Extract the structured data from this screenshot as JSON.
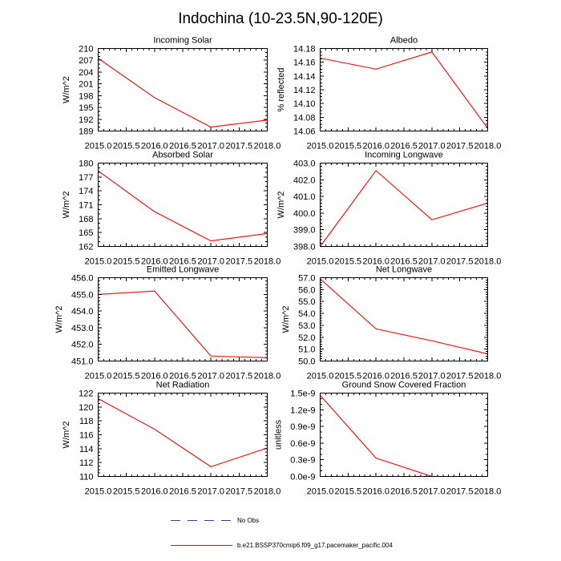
{
  "figure": {
    "title": "Indochina (10-23.5N,90-120E)"
  },
  "legend": {
    "items": [
      {
        "label": "No Obs",
        "color": "#3d3d9e",
        "dashed": true
      },
      {
        "label": "b.e21.BSSP370cmip6.f09_g17.pacemaker_pacific.004",
        "color": "#ff0000",
        "dashed": false
      }
    ]
  },
  "chart_data": [
    {
      "type": "line",
      "title": "Incoming Solar",
      "ylabel": "W/m^2",
      "x": [
        2015.0,
        2016.0,
        2017.0,
        2018.0
      ],
      "xlim": [
        2015.0,
        2018.0
      ],
      "xticks": [
        2015.0,
        2015.5,
        2016.0,
        2016.5,
        2017.0,
        2017.5,
        2018.0
      ],
      "xticklabels": [
        "2015.0",
        "2015.5",
        "2016.0",
        "2016.5",
        "2017.0",
        "2017.5",
        "2018.0"
      ],
      "ylim": [
        189,
        210
      ],
      "yticks": [
        189,
        192,
        195,
        198,
        201,
        204,
        207,
        210
      ],
      "yticklabels": [
        "189",
        "192",
        "195",
        "198",
        "201",
        "204",
        "207",
        "210"
      ],
      "series": [
        {
          "color": "#ff0000",
          "values": [
            207.5,
            197.5,
            190.0,
            191.8
          ]
        }
      ]
    },
    {
      "type": "line",
      "title": "Albedo",
      "ylabel": "% reflected",
      "x": [
        2015.0,
        2016.0,
        2017.0,
        2018.0
      ],
      "xlim": [
        2015.0,
        2018.0
      ],
      "xticks": [
        2015.0,
        2015.5,
        2016.0,
        2016.5,
        2017.0,
        2017.5,
        2018.0
      ],
      "xticklabels": [
        "2015.0",
        "2015.5",
        "2016.0",
        "2016.5",
        "2017.0",
        "2017.5",
        "2018.0"
      ],
      "ylim": [
        14.06,
        14.18
      ],
      "yticks": [
        14.06,
        14.08,
        14.1,
        14.12,
        14.14,
        14.16,
        14.18
      ],
      "yticklabels": [
        "14.06",
        "14.08",
        "14.10",
        "14.12",
        "14.14",
        "14.16",
        "14.18"
      ],
      "series": [
        {
          "color": "#ff0000",
          "values": [
            14.166,
            14.15,
            14.175,
            14.064
          ]
        }
      ]
    },
    {
      "type": "line",
      "title": "Absorbed Solar",
      "ylabel": "W/m^2",
      "x": [
        2015.0,
        2016.0,
        2017.0,
        2018.0
      ],
      "xlim": [
        2015.0,
        2018.0
      ],
      "xticks": [
        2015.0,
        2015.5,
        2016.0,
        2016.5,
        2017.0,
        2017.5,
        2018.0
      ],
      "xticklabels": [
        "2015.0",
        "2015.5",
        "2016.0",
        "2016.5",
        "2017.0",
        "2017.5",
        "2018.0"
      ],
      "ylim": [
        162,
        180
      ],
      "yticks": [
        162,
        165,
        168,
        171,
        174,
        177,
        180
      ],
      "yticklabels": [
        "162",
        "165",
        "168",
        "171",
        "174",
        "177",
        "180"
      ],
      "series": [
        {
          "color": "#ff0000",
          "values": [
            178.3,
            169.5,
            163.2,
            164.8
          ]
        }
      ]
    },
    {
      "type": "line",
      "title": "Incoming Longwave",
      "ylabel": "W/m^2",
      "x": [
        2015.0,
        2016.0,
        2017.0,
        2018.0
      ],
      "xlim": [
        2015.0,
        2018.0
      ],
      "xticks": [
        2015.0,
        2015.5,
        2016.0,
        2016.5,
        2017.0,
        2017.5,
        2018.0
      ],
      "xticklabels": [
        "2015.0",
        "2015.5",
        "2016.0",
        "2016.5",
        "2017.0",
        "2017.5",
        "2018.0"
      ],
      "ylim": [
        398.0,
        403.0
      ],
      "yticks": [
        398.0,
        399.0,
        400.0,
        401.0,
        402.0,
        403.0
      ],
      "yticklabels": [
        "398.0",
        "399.0",
        "400.0",
        "401.0",
        "402.0",
        "403.0"
      ],
      "series": [
        {
          "color": "#ff0000",
          "values": [
            398.0,
            402.55,
            399.6,
            400.6
          ]
        }
      ]
    },
    {
      "type": "line",
      "title": "Emitted Longwave",
      "ylabel": "W/m^2",
      "x": [
        2015.0,
        2016.0,
        2017.0,
        2018.0
      ],
      "xlim": [
        2015.0,
        2018.0
      ],
      "xticks": [
        2015.0,
        2015.5,
        2016.0,
        2016.5,
        2017.0,
        2017.5,
        2018.0
      ],
      "xticklabels": [
        "2015.0",
        "2015.5",
        "2016.0",
        "2016.5",
        "2017.0",
        "2017.5",
        "2018.0"
      ],
      "ylim": [
        451.0,
        456.0
      ],
      "yticks": [
        451.0,
        452.0,
        453.0,
        454.0,
        455.0,
        456.0
      ],
      "yticklabels": [
        "451.0",
        "452.0",
        "453.0",
        "454.0",
        "455.0",
        "456.0"
      ],
      "series": [
        {
          "color": "#ff0000",
          "values": [
            455.0,
            455.2,
            451.3,
            451.2
          ]
        }
      ]
    },
    {
      "type": "line",
      "title": "Net Longwave",
      "ylabel": "W/m^2",
      "x": [
        2015.0,
        2016.0,
        2017.0,
        2018.0
      ],
      "xlim": [
        2015.0,
        2018.0
      ],
      "xticks": [
        2015.0,
        2015.5,
        2016.0,
        2016.5,
        2017.0,
        2017.5,
        2018.0
      ],
      "xticklabels": [
        "2015.0",
        "2015.5",
        "2016.0",
        "2016.5",
        "2017.0",
        "2017.5",
        "2018.0"
      ],
      "ylim": [
        50.0,
        57.0
      ],
      "yticks": [
        50.0,
        51.0,
        52.0,
        53.0,
        54.0,
        55.0,
        56.0,
        57.0
      ],
      "yticklabels": [
        "50.0",
        "51.0",
        "52.0",
        "53.0",
        "54.0",
        "55.0",
        "56.0",
        "57.0"
      ],
      "series": [
        {
          "color": "#ff0000",
          "values": [
            56.9,
            52.7,
            51.7,
            50.6
          ]
        }
      ]
    },
    {
      "type": "line",
      "title": "Net Radiation",
      "ylabel": "W/m^2",
      "x": [
        2015.0,
        2016.0,
        2017.0,
        2018.0
      ],
      "xlim": [
        2015.0,
        2018.0
      ],
      "xticks": [
        2015.0,
        2015.5,
        2016.0,
        2016.5,
        2017.0,
        2017.5,
        2018.0
      ],
      "xticklabels": [
        "2015.0",
        "2015.5",
        "2016.0",
        "2016.5",
        "2017.0",
        "2017.5",
        "2018.0"
      ],
      "ylim": [
        110,
        122
      ],
      "yticks": [
        110,
        112,
        114,
        116,
        118,
        120,
        122
      ],
      "yticklabels": [
        "110",
        "112",
        "114",
        "116",
        "118",
        "120",
        "122"
      ],
      "series": [
        {
          "color": "#ff0000",
          "values": [
            121.2,
            116.8,
            111.4,
            114.1
          ]
        }
      ]
    },
    {
      "type": "line",
      "title": "Ground Snow Covered Fraction",
      "ylabel": "unitless",
      "x": [
        2015.0,
        2016.0,
        2017.0,
        2018.0
      ],
      "xlim": [
        2015.0,
        2018.0
      ],
      "xticks": [
        2015.0,
        2015.5,
        2016.0,
        2016.5,
        2017.0,
        2017.5,
        2018.0
      ],
      "xticklabels": [
        "2015.0",
        "2015.5",
        "2016.0",
        "2016.5",
        "2017.0",
        "2017.5",
        "2018.0"
      ],
      "ylim": [
        0.0,
        1.5e-09
      ],
      "yticks": [
        0.0,
        3e-10,
        6e-10,
        9e-10,
        1.2e-09,
        1.5e-09
      ],
      "yticklabels": [
        "0.0e-9",
        "0.3e-9",
        "0.6e-9",
        "0.9e-9",
        "1.2e-9",
        "1.5e-9"
      ],
      "series": [
        {
          "color": "#ff0000",
          "values": [
            1.46e-09,
            3.3e-10,
            0.0,
            null
          ]
        }
      ]
    }
  ]
}
